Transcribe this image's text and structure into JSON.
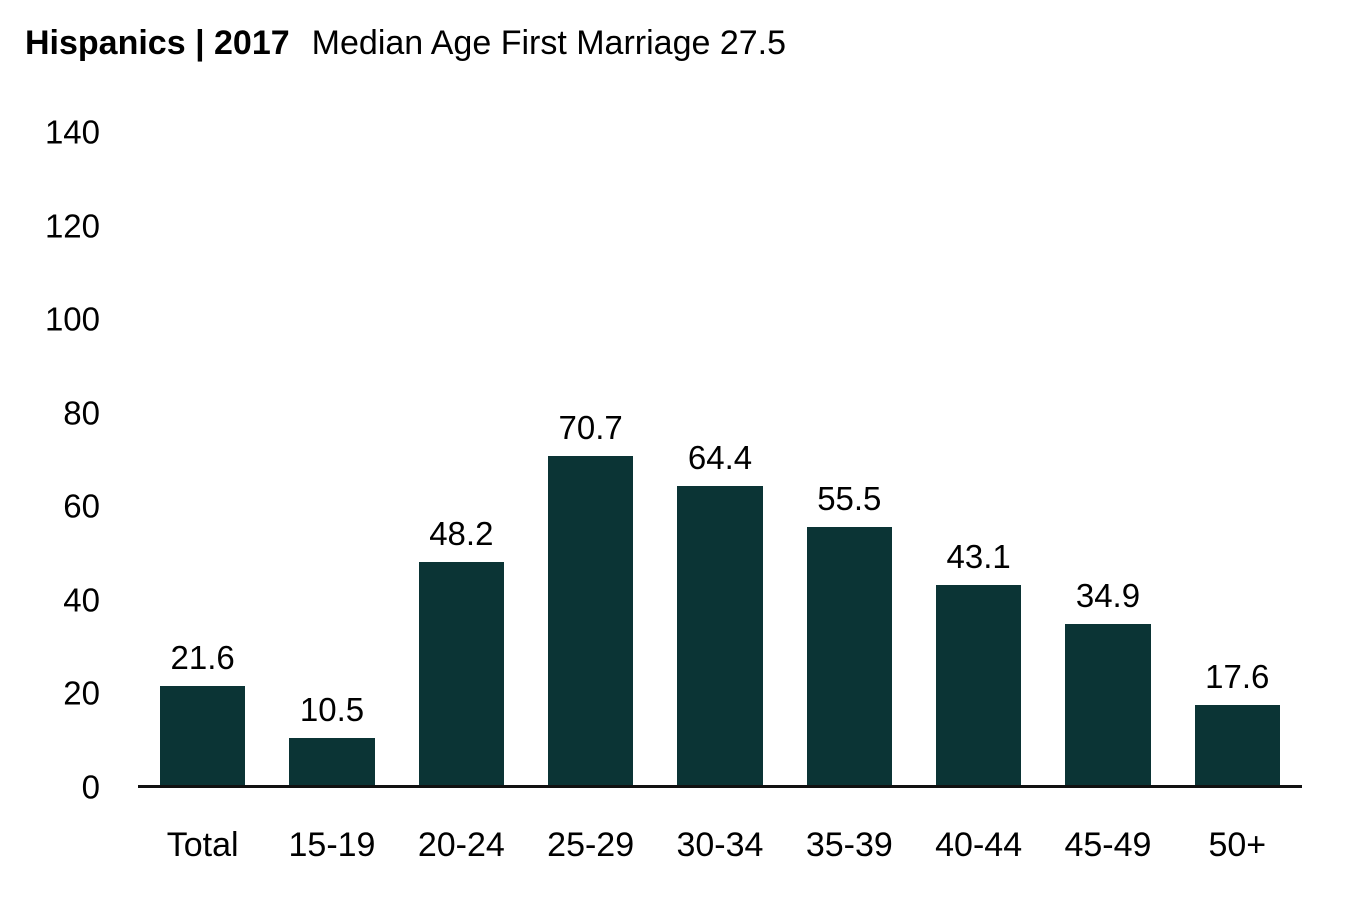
{
  "chart": {
    "title_bold": "Hispanics | 2017",
    "title_regular": "Median Age First Marriage 27.5"
  },
  "chart_data": {
    "type": "bar",
    "title": "Hispanics | 2017 Median Age First Marriage 27.5",
    "title_segments": {
      "bold": "Hispanics | 2017",
      "regular": "Median Age First Marriage 27.5"
    },
    "categories": [
      "Total",
      "15-19",
      "20-24",
      "25-29",
      "30-34",
      "35-39",
      "40-44",
      "45-49",
      "50+"
    ],
    "values": [
      21.6,
      10.5,
      48.2,
      70.7,
      64.4,
      55.5,
      43.1,
      34.9,
      17.6
    ],
    "value_labels": [
      "21.6",
      "10.5",
      "48.2",
      "70.7",
      "64.4",
      "55.5",
      "43.1",
      "34.9",
      "17.6"
    ],
    "xlabel": "",
    "ylabel": "",
    "ylim": [
      0,
      140
    ],
    "yticks": [
      0,
      20,
      40,
      60,
      80,
      100,
      120,
      140
    ],
    "grid": false,
    "legend": false,
    "bar_color": "#0b3435",
    "axis_line_color": "#111111",
    "text_color": "#000000"
  }
}
